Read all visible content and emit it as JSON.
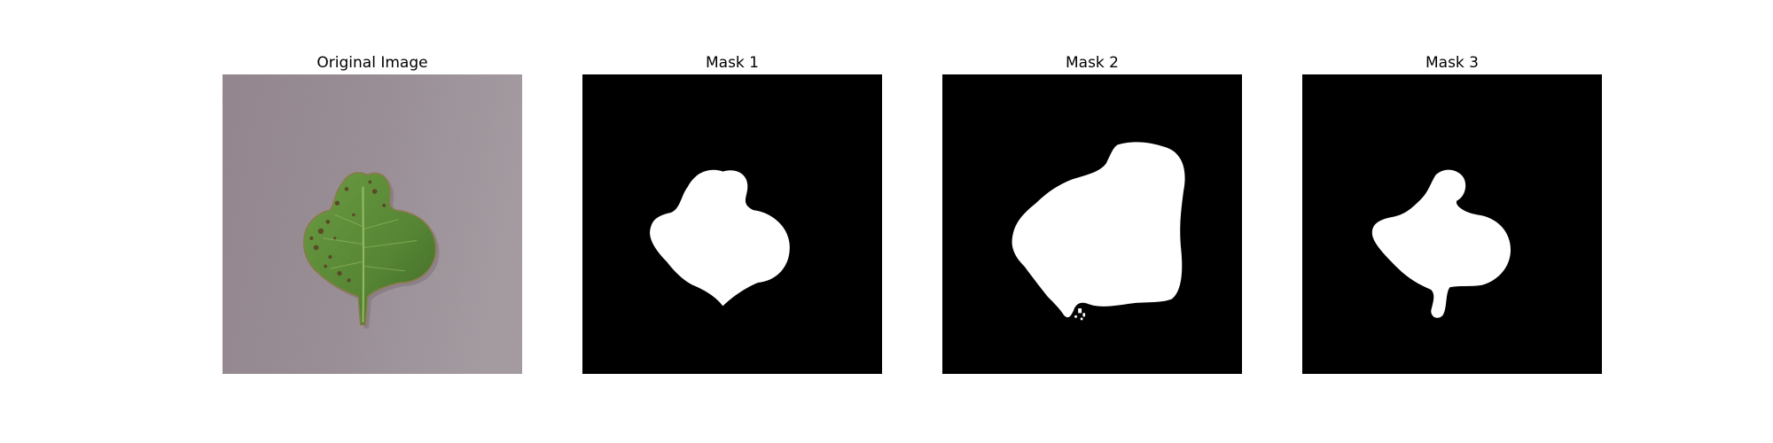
{
  "panels": [
    {
      "title": "Original Image",
      "kind": "photo"
    },
    {
      "title": "Mask 1",
      "kind": "mask"
    },
    {
      "title": "Mask 2",
      "kind": "mask"
    },
    {
      "title": "Mask 3",
      "kind": "mask"
    }
  ],
  "colors": {
    "background_photo": "#8e8088",
    "leaf_green": "#5b8a36",
    "leaf_dark": "#3e6424",
    "lesion": "#5a3e24",
    "mask_bg": "#000000",
    "mask_fg": "#ffffff"
  }
}
